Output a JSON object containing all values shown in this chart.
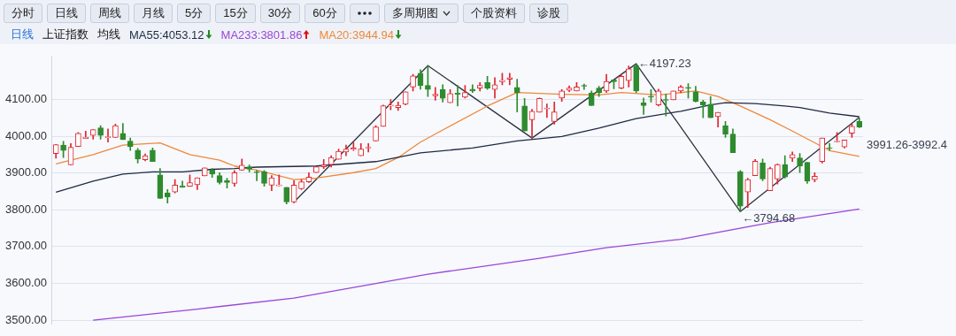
{
  "chart_data": {
    "type": "candlestick",
    "title": "上证指数",
    "subtitle": "日线",
    "legend_title": "均线",
    "categories": [
      null,
      null,
      null,
      null,
      null,
      null,
      null,
      null,
      null,
      null,
      null,
      null,
      null,
      null,
      null,
      null,
      null,
      null,
      null,
      null,
      null,
      null,
      null,
      null,
      null,
      null,
      null,
      null,
      null,
      null,
      null,
      null,
      null,
      null,
      null,
      null,
      null,
      null,
      null,
      null,
      null,
      null,
      null,
      null,
      null,
      null,
      null,
      null,
      null,
      null,
      null,
      null,
      null,
      null,
      null,
      null,
      null,
      null,
      null,
      null,
      null,
      null,
      null,
      null,
      null,
      null,
      null,
      null,
      null,
      null,
      null,
      null,
      null,
      null,
      null,
      null,
      null,
      null,
      null,
      null,
      null,
      null,
      null,
      null,
      null,
      null,
      null,
      null,
      null,
      null,
      null,
      null,
      null,
      null,
      null,
      null,
      null,
      null,
      null,
      null,
      null,
      null,
      null,
      null,
      null,
      null,
      null,
      null,
      null
    ],
    "ohlc": [
      [
        3953,
        3978,
        3940,
        3977
      ],
      [
        3976,
        3986,
        3942,
        3961
      ],
      [
        3922,
        3980,
        3922,
        3970
      ],
      [
        3972,
        4010,
        3972,
        4008
      ],
      [
        3994,
        4014,
        3994,
        3997
      ],
      [
        4002,
        4018,
        3992,
        4018
      ],
      [
        4023,
        4029,
        3992,
        4002
      ],
      [
        3996,
        4020,
        3984,
        3999
      ],
      [
        3997,
        4033,
        3997,
        4029
      ],
      [
        4008,
        4035,
        3991,
        3991
      ],
      [
        3987,
        3995,
        3961,
        3972
      ],
      [
        3962,
        3967,
        3927,
        3938
      ],
      [
        3936,
        3952,
        3933,
        3947
      ],
      [
        3962,
        3968,
        3931,
        3931
      ],
      [
        3895,
        3912,
        3831,
        3831
      ],
      [
        3846,
        3855,
        3818,
        3835
      ],
      [
        3848,
        3882,
        3846,
        3867
      ],
      [
        3865,
        3878,
        3861,
        3861
      ],
      [
        3864,
        3895,
        3864,
        3874
      ],
      [
        3868,
        3887,
        3855,
        3887
      ],
      [
        3892,
        3914,
        3892,
        3914
      ],
      [
        3908,
        3912,
        3888,
        3897
      ],
      [
        3893,
        3901,
        3870,
        3874
      ],
      [
        3880,
        3886,
        3859,
        3874
      ],
      [
        3872,
        3907,
        3864,
        3901
      ],
      [
        3908,
        3938,
        3907,
        3921
      ],
      [
        3917,
        3922,
        3903,
        3910
      ],
      [
        3903,
        3907,
        3879,
        3901
      ],
      [
        3903,
        3907,
        3864,
        3872
      ],
      [
        3867,
        3893,
        3852,
        3887
      ],
      [
        3865,
        3895,
        3865,
        3868
      ],
      [
        3861,
        3861,
        3816,
        3821
      ],
      [
        3821,
        3879,
        3819,
        3867
      ],
      [
        3857,
        3882,
        3855,
        3876
      ],
      [
        3876,
        3901,
        3874,
        3889
      ],
      [
        3901,
        3917,
        3901,
        3917
      ],
      [
        3917,
        3937,
        3912,
        3922
      ],
      [
        3923,
        3947,
        3916,
        3942
      ],
      [
        3937,
        3965,
        3937,
        3959
      ],
      [
        3957,
        3976,
        3947,
        3965
      ],
      [
        3964,
        3984,
        3961,
        3968
      ],
      [
        3947,
        3980,
        3947,
        3965
      ],
      [
        3968,
        3980,
        3957,
        3970
      ],
      [
        3987,
        4029,
        3987,
        4025
      ],
      [
        4027,
        4085,
        4027,
        4083
      ],
      [
        4082,
        4100,
        4072,
        4085
      ],
      [
        4078,
        4093,
        4070,
        4084
      ],
      [
        4087,
        4121,
        4085,
        4121
      ],
      [
        4134,
        4168,
        4123,
        4164
      ],
      [
        4171,
        4181,
        4128,
        4138
      ],
      [
        4138,
        4192,
        4108,
        4127
      ],
      [
        4110,
        4133,
        4098,
        4114
      ],
      [
        4127,
        4140,
        4093,
        4103
      ],
      [
        4091,
        4127,
        4091,
        4116
      ],
      [
        4117,
        4138,
        4082,
        4114
      ],
      [
        4106,
        4138,
        4104,
        4119
      ],
      [
        4128,
        4140,
        4119,
        4123
      ],
      [
        4131,
        4146,
        4123,
        4138
      ],
      [
        4146,
        4163,
        4127,
        4131
      ],
      [
        4127,
        4159,
        4104,
        4140
      ],
      [
        4148,
        4171,
        4140,
        4152
      ],
      [
        4155,
        4171,
        4140,
        4159
      ],
      [
        4133,
        4155,
        4066,
        4118
      ],
      [
        4082,
        4103,
        4014,
        4014
      ],
      [
        4045,
        4073,
        3996,
        4068
      ],
      [
        4065,
        4104,
        4065,
        4103
      ],
      [
        4074,
        4088,
        4051,
        4076
      ],
      [
        4040,
        4093,
        4033,
        4066
      ],
      [
        4104,
        4127,
        4095,
        4123
      ],
      [
        4125,
        4137,
        4121,
        4131
      ],
      [
        4123,
        4146,
        4123,
        4134
      ],
      [
        4138,
        4142,
        4127,
        4136
      ],
      [
        4118,
        4123,
        4083,
        4083
      ],
      [
        4131,
        4136,
        4108,
        4118
      ],
      [
        4123,
        4168,
        4119,
        4149
      ],
      [
        4153,
        4153,
        4129,
        4148
      ],
      [
        4131,
        4168,
        4129,
        4163
      ],
      [
        4151,
        4191,
        4134,
        4183
      ],
      [
        4191,
        4197.23,
        4119,
        4123
      ],
      [
        4091,
        4104,
        4059,
        4083
      ],
      [
        4109,
        4127,
        4093,
        4106
      ],
      [
        4085,
        4128,
        4082,
        4123
      ],
      [
        4100,
        4115,
        4055,
        4098
      ],
      [
        4099,
        4123,
        4099,
        4123
      ],
      [
        4123,
        4138,
        4118,
        4134
      ],
      [
        4133,
        4143,
        4104,
        4130
      ],
      [
        4121,
        4136,
        4093,
        4095
      ],
      [
        4093,
        4098,
        4050,
        4085
      ],
      [
        4087,
        4108,
        4050,
        4050
      ],
      [
        4053,
        4065,
        4025,
        4065
      ],
      [
        4029,
        4040,
        3997,
        4006
      ],
      [
        4006,
        4020,
        3955,
        3955
      ],
      [
        3904,
        3907,
        3794.68,
        3810
      ],
      [
        3848,
        3886,
        3806,
        3882
      ],
      [
        3893,
        3937,
        3893,
        3932
      ],
      [
        3927,
        3938,
        3879,
        3884
      ],
      [
        3852,
        3916,
        3852,
        3912
      ],
      [
        3884,
        3925,
        3870,
        3923
      ],
      [
        3923,
        3947,
        3886,
        3889
      ],
      [
        3940,
        3957,
        3931,
        3950
      ],
      [
        3941,
        3953,
        3901,
        3919
      ],
      [
        3929,
        3929,
        3872,
        3878
      ],
      [
        3882,
        3901,
        3876,
        3891
      ],
      [
        3931,
        3995,
        3927,
        3995
      ],
      [
        3968,
        3980,
        3961,
        3967
      ],
      [
        3985,
        4010,
        3984,
        3987
      ],
      [
        3971,
        3990,
        3968,
        3990
      ],
      [
        4008,
        4033,
        3997,
        4027
      ],
      [
        4040,
        4050,
        4023,
        4025
      ]
    ],
    "series": [
      {
        "type": "line",
        "name": "MA55:4053.12",
        "color": "#1f2a44",
        "values": [
          3848,
          null,
          null,
          null,
          null,
          3878,
          null,
          null,
          null,
          3897,
          null,
          null,
          null,
          3903,
          null,
          null,
          null,
          3903,
          null,
          null,
          null,
          3910,
          null,
          null,
          3912,
          null,
          null,
          3916,
          null,
          null,
          null,
          null,
          null,
          null,
          null,
          3919,
          null,
          null,
          null,
          null,
          null,
          null,
          null,
          3931,
          null,
          null,
          null,
          null,
          null,
          3955,
          null,
          null,
          null,
          null,
          null,
          null,
          3968,
          null,
          null,
          null,
          null,
          null,
          3987,
          null,
          null,
          3993,
          null,
          null,
          3999,
          null,
          null,
          null,
          null,
          4022,
          null,
          null,
          null,
          null,
          4048,
          null,
          null,
          null,
          null,
          null,
          4068,
          null,
          null,
          null,
          4085,
          null,
          4091,
          null,
          null,
          null,
          4089,
          null,
          null,
          null,
          4082,
          null,
          4078,
          null,
          null,
          null,
          4063,
          null,
          null,
          null,
          4053
        ]
      },
      {
        "type": "line",
        "name": "MA233:3801.86",
        "color": "#9b45d8",
        "values": [
          null,
          null,
          null,
          null,
          null,
          3500,
          null,
          null,
          null,
          null,
          null,
          null,
          null,
          null,
          null,
          null,
          null,
          null,
          null,
          3530,
          null,
          null,
          null,
          null,
          null,
          null,
          null,
          null,
          null,
          null,
          null,
          null,
          3560,
          null,
          null,
          null,
          null,
          null,
          null,
          null,
          null,
          null,
          null,
          null,
          null,
          null,
          null,
          null,
          null,
          null,
          3625,
          null,
          null,
          null,
          null,
          null,
          null,
          null,
          null,
          null,
          null,
          null,
          null,
          null,
          null,
          3668,
          null,
          null,
          null,
          null,
          null,
          null,
          null,
          null,
          3697,
          null,
          null,
          null,
          null,
          null,
          null,
          null,
          null,
          null,
          3720,
          null,
          null,
          null,
          null,
          null,
          null,
          null,
          null,
          null,
          null,
          null,
          3765,
          null,
          null,
          null,
          null,
          null,
          null,
          null,
          null,
          null,
          null,
          null,
          3802
        ]
      },
      {
        "type": "line",
        "name": "MA20:3944.94",
        "color": "#f0883a",
        "values": [
          3925,
          null,
          null,
          null,
          null,
          3950,
          null,
          null,
          null,
          3976,
          null,
          null,
          null,
          null,
          3982,
          null,
          null,
          null,
          3950,
          null,
          null,
          null,
          3935,
          null,
          3919,
          null,
          null,
          3908,
          null,
          null,
          null,
          null,
          3882,
          null,
          null,
          3886,
          null,
          null,
          null,
          null,
          3901,
          null,
          null,
          3912,
          null,
          null,
          3942,
          null,
          null,
          3984,
          null,
          null,
          4017,
          null,
          null,
          null,
          null,
          null,
          4082,
          null,
          null,
          null,
          4119,
          null,
          null,
          null,
          null,
          null,
          4114,
          null,
          null,
          null,
          null,
          4112,
          null,
          null,
          4119,
          null,
          null,
          null,
          null,
          4112,
          null,
          null,
          null,
          null,
          4123,
          null,
          null,
          4108,
          null,
          null,
          4082,
          null,
          null,
          null,
          4045,
          null,
          null,
          4014,
          null,
          null,
          null,
          null,
          3961,
          null,
          null,
          null,
          3945
        ]
      },
      {
        "type": "line",
        "color": "#2e3340",
        "values": [
          null,
          null,
          null,
          null,
          null,
          null,
          null,
          null,
          null,
          null,
          null,
          null,
          null,
          null,
          null,
          null,
          null,
          null,
          null,
          null,
          null,
          null,
          null,
          null,
          null,
          null,
          null,
          null,
          null,
          null,
          null,
          null,
          3821,
          null,
          null,
          null,
          null,
          null,
          null,
          null,
          null,
          null,
          null,
          null,
          null,
          null,
          null,
          null,
          null,
          null,
          4192,
          null,
          null,
          null,
          null,
          null,
          null,
          null,
          null,
          null,
          null,
          null,
          null,
          null,
          3995,
          null,
          null,
          null,
          null,
          null,
          null,
          null,
          null,
          null,
          null,
          null,
          null,
          null,
          4197,
          null,
          null,
          null,
          null,
          null,
          null,
          null,
          null,
          null,
          null,
          null,
          null,
          null,
          3795,
          null,
          null,
          null,
          null,
          null,
          null,
          null,
          null,
          null,
          null,
          null,
          null,
          null,
          null,
          null,
          4051
        ]
      }
    ],
    "ylim": [
      3490,
      4217
    ],
    "yticks": [
      {
        "value": 3500,
        "label": "3500.00"
      },
      {
        "value": 3600,
        "label": "3600.00"
      },
      {
        "value": 3700,
        "label": "3700.00"
      },
      {
        "value": 3800,
        "label": "3800.00"
      },
      {
        "value": 3900,
        "label": "3900.00"
      },
      {
        "value": 4000,
        "label": "4000.00"
      },
      {
        "value": 4100,
        "label": "4100.00"
      }
    ],
    "grid": "y",
    "legend": "top left",
    "tick_labels": "y",
    "annotations": [
      "分时",
      "日线",
      "周线",
      "月线",
      "5分",
      "15分",
      "30分",
      "60分",
      "多周期图",
      "个股资料",
      "诊股",
      "←4197.23",
      "←3794.68",
      "3991.26-3992.4"
    ]
  }
}
